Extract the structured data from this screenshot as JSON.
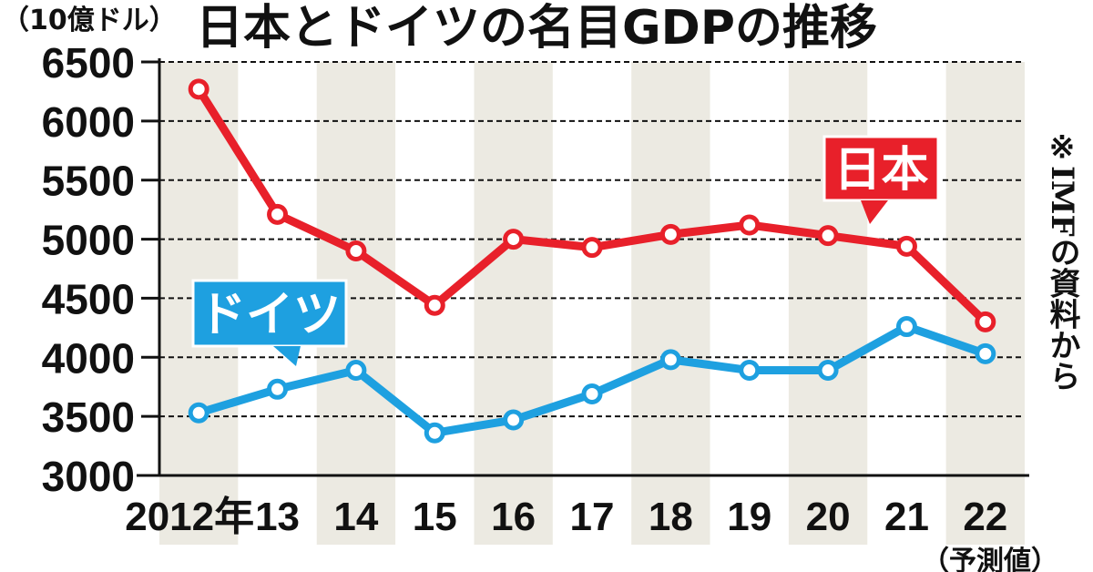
{
  "chart_data": {
    "type": "line",
    "title": "日本とドイツの名目GDPの推移",
    "unit_label": "（10億ドル）",
    "note": "※IMFの資料から",
    "x": [
      "2012年",
      "13",
      "14",
      "15",
      "16",
      "17",
      "18",
      "19",
      "20",
      "21",
      "22"
    ],
    "x_note": "（予測値）",
    "ylim": [
      3000,
      6500
    ],
    "yticks": [
      6500,
      6000,
      5500,
      5000,
      4500,
      4000,
      3500,
      3000
    ],
    "grid": true,
    "series": [
      {
        "name": "日本",
        "color": "#e8202a",
        "values": [
          6270,
          5210,
          4900,
          4440,
          5000,
          4930,
          5040,
          5120,
          5030,
          4940,
          4300
        ]
      },
      {
        "name": "ドイツ",
        "color": "#1ea0e0",
        "values": [
          3530,
          3730,
          3890,
          3360,
          3470,
          3690,
          3980,
          3890,
          3890,
          4260,
          4030
        ]
      }
    ]
  }
}
